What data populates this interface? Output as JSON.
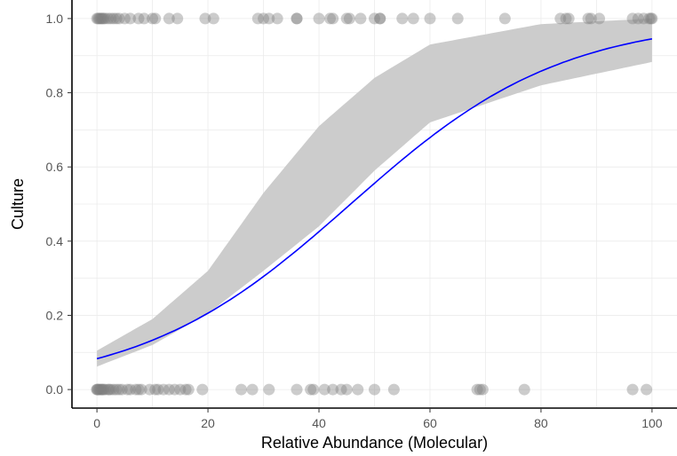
{
  "chart_data": {
    "type": "scatter",
    "title": "",
    "xlabel": "Relative Abundance (Molecular)",
    "ylabel": "Culture",
    "xlim": [
      -4.5,
      104.5
    ],
    "ylim": [
      -0.05,
      1.05
    ],
    "x_ticks": [
      0,
      20,
      40,
      60,
      80,
      100
    ],
    "x_tick_labels": [
      "0",
      "20",
      "40",
      "60",
      "80",
      "100"
    ],
    "y_ticks": [
      0,
      0.2,
      0.4,
      0.6,
      0.8,
      1.0
    ],
    "y_tick_labels": [
      "0.0",
      "0.2",
      "0.4",
      "0.6",
      "0.8",
      "1.0"
    ],
    "grid": true,
    "legend": "none",
    "colors": {
      "fit_line": "#0000ff",
      "ribbon": "#cccccc",
      "points": "#808080"
    },
    "points": {
      "culture_1": [
        0,
        0.2,
        0.4,
        0.6,
        0.8,
        1,
        1.2,
        1.5,
        2,
        2.5,
        3,
        3.5,
        4,
        5,
        6,
        7.5,
        8.5,
        10,
        10.5,
        13,
        14.5,
        19.5,
        21,
        29,
        30,
        31,
        32.5,
        36,
        36,
        40,
        42,
        42.5,
        45,
        45.5,
        47.5,
        50,
        51,
        51,
        55,
        57,
        60,
        65,
        73.5,
        83.5,
        84.5,
        85,
        88.5,
        89,
        90.5,
        96.5,
        97.5,
        98.5,
        99.5,
        99.8,
        100
      ],
      "culture_0": [
        0,
        0,
        0.2,
        0.3,
        0.5,
        0.7,
        0.9,
        1,
        1.2,
        1.5,
        2,
        2.2,
        2.5,
        3,
        3.5,
        4,
        4.5,
        5.5,
        6,
        7,
        7.5,
        8,
        9.5,
        10.5,
        11,
        12,
        13,
        14,
        15,
        16,
        16.5,
        19,
        26,
        28,
        31,
        36,
        38.5,
        39,
        41,
        42.5,
        44,
        45,
        47,
        50,
        53.5,
        68.5,
        69,
        69.5,
        77,
        96.5,
        99
      ]
    },
    "logistic_fit": {
      "model": "logistic",
      "intercept": -2.4,
      "slope": 0.0525,
      "ci_lower": [
        0.062,
        0.12,
        0.205,
        0.32,
        0.44,
        0.59,
        0.72,
        0.82,
        0.883
      ],
      "ci_upper": [
        0.105,
        0.19,
        0.32,
        0.53,
        0.71,
        0.84,
        0.93,
        0.985,
        1.0
      ],
      "ci_x": [
        0,
        10,
        20,
        30,
        40,
        50,
        60,
        80,
        100
      ]
    }
  }
}
